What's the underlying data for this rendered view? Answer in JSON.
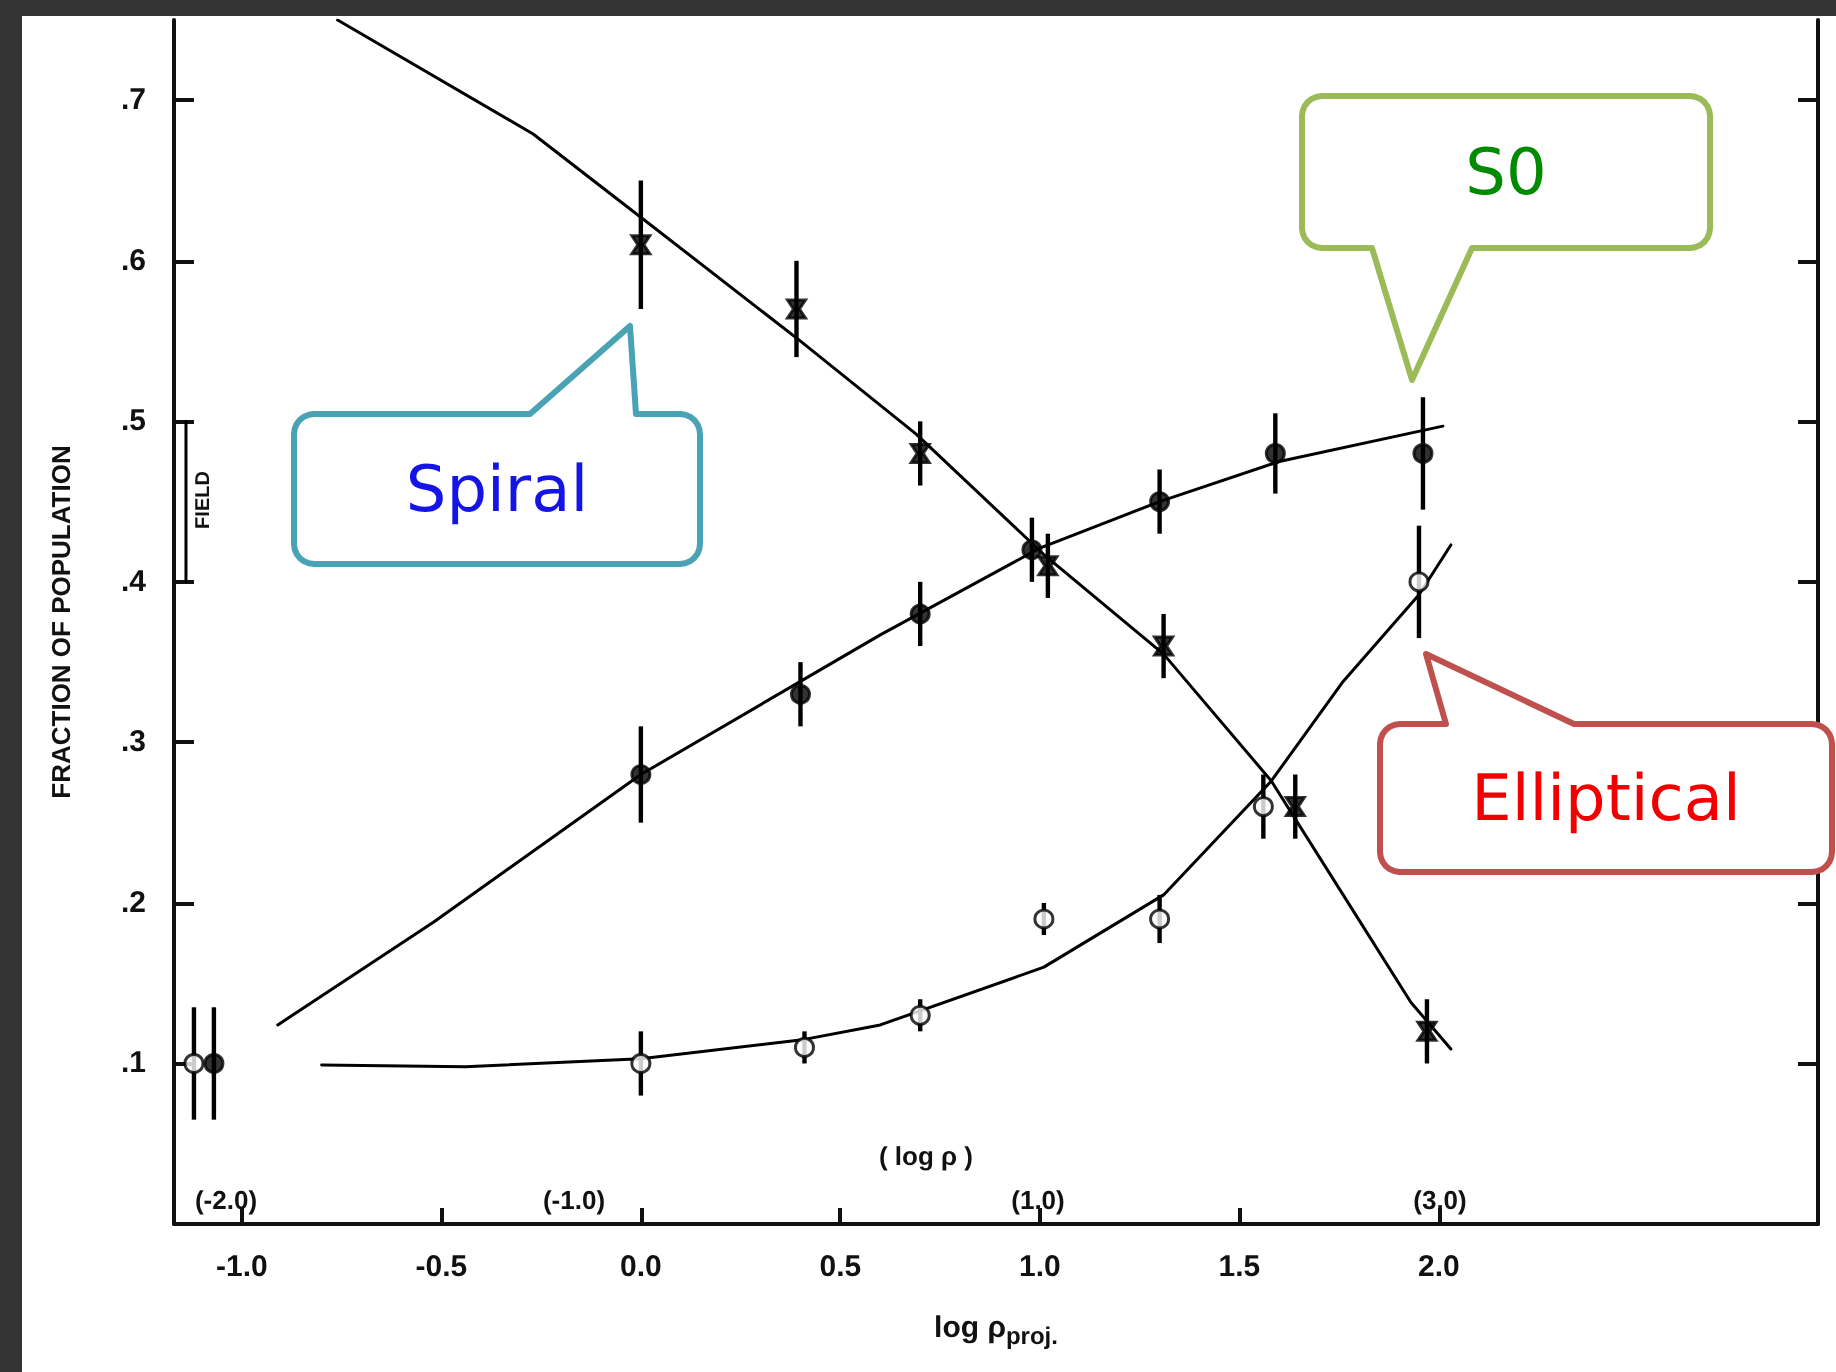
{
  "chart_data": {
    "type": "scatter",
    "xlabel": "log ρ$_{proj.}$",
    "ylabel": "FRACTION OF POPULATION",
    "xlim": [
      -1.17,
      2.95
    ],
    "ylim": [
      0,
      0.75
    ],
    "xticks": [
      {
        "value": -1,
        "label": "-1.0"
      },
      {
        "value": -0.5,
        "label": "-0.5"
      },
      {
        "value": 0,
        "label": "0.0"
      },
      {
        "value": 0.5,
        "label": "0.5"
      },
      {
        "value": 1,
        "label": "1.0"
      },
      {
        "value": 1.5,
        "label": "1.5"
      },
      {
        "value": 2,
        "label": "2.0"
      }
    ],
    "yticks": [
      {
        "value": 0.1,
        "label": ".1"
      },
      {
        "value": 0.2,
        "label": ".2"
      },
      {
        "value": 0.3,
        "label": ".3"
      },
      {
        "value": 0.4,
        "label": ".4"
      },
      {
        "value": 0.5,
        "label": ".5"
      },
      {
        "value": 0.6,
        "label": ".6"
      },
      {
        "value": 0.7,
        "label": ".7"
      }
    ],
    "grid": false,
    "annotations": [
      "( log ρ )",
      "(-2.0)",
      "(-1.0)",
      "(1.0)",
      "(3.0)",
      "FIELD",
      "Spiral",
      "S0",
      "Elliptical"
    ],
    "series": [
      {
        "color": "#000000",
        "marker": "cross",
        "x": [
          0.0,
          0.39,
          0.7,
          1.02,
          1.31,
          1.64,
          1.97
        ],
        "values": [
          0.61,
          0.57,
          0.48,
          0.41,
          0.36,
          0.26,
          0.12
        ],
        "errors": [
          0.04,
          0.03,
          0.02,
          0.02,
          0.02,
          0.02,
          0.02
        ]
      },
      {
        "color": "#000000",
        "marker": "circle",
        "x": [
          -1.07,
          0.0,
          0.4,
          0.7,
          0.98,
          1.3,
          1.59,
          1.96
        ],
        "values": [
          0.1,
          0.28,
          0.33,
          0.38,
          0.42,
          0.45,
          0.48,
          0.48
        ],
        "errors": [
          0.035,
          0.03,
          0.02,
          0.02,
          0.02,
          0.02,
          0.025,
          0.035
        ]
      },
      {
        "color": "#ffffff",
        "marker": "circle",
        "x": [
          -1.12,
          0.0,
          0.41,
          0.7,
          1.01,
          1.3,
          1.56,
          1.95
        ],
        "values": [
          0.1,
          0.1,
          0.11,
          0.13,
          0.19,
          0.19,
          0.26,
          0.4
        ],
        "errors": [
          0.035,
          0.02,
          0.01,
          0.01,
          0.01,
          0.015,
          0.02,
          0.035
        ]
      },
      {
        "type": "line",
        "color": "#000000",
        "marker": "none",
        "x": [
          -1.14,
          -1.14
        ],
        "values": [
          0.4,
          0.5
        ]
      },
      {
        "type": "line",
        "color": "#000000",
        "marker": "none",
        "x": [
          -0.76,
          -0.27,
          -0.01,
          0.4,
          0.69,
          1.01,
          1.31,
          1.58,
          1.76,
          1.93,
          2.03
        ],
        "values": [
          0.75,
          0.679,
          0.629,
          0.55,
          0.492,
          0.417,
          0.355,
          0.276,
          0.205,
          0.138,
          0.109
        ]
      },
      {
        "type": "line",
        "color": "#000000",
        "marker": "none",
        "x": [
          -0.91,
          -0.52,
          0.0,
          0.4,
          0.6,
          1.0,
          1.3,
          1.6,
          2.01
        ],
        "values": [
          0.124,
          0.188,
          0.28,
          0.338,
          0.367,
          0.421,
          0.45,
          0.475,
          0.497
        ]
      },
      {
        "type": "line",
        "color": "#000000",
        "marker": "none",
        "x": [
          -0.8,
          -0.44,
          0.0,
          0.41,
          0.6,
          1.01,
          1.31,
          1.58,
          1.76,
          1.95,
          2.03
        ],
        "values": [
          0.099,
          0.098,
          0.103,
          0.115,
          0.124,
          0.16,
          0.205,
          0.276,
          0.338,
          0.392,
          0.423
        ]
      }
    ]
  }
}
